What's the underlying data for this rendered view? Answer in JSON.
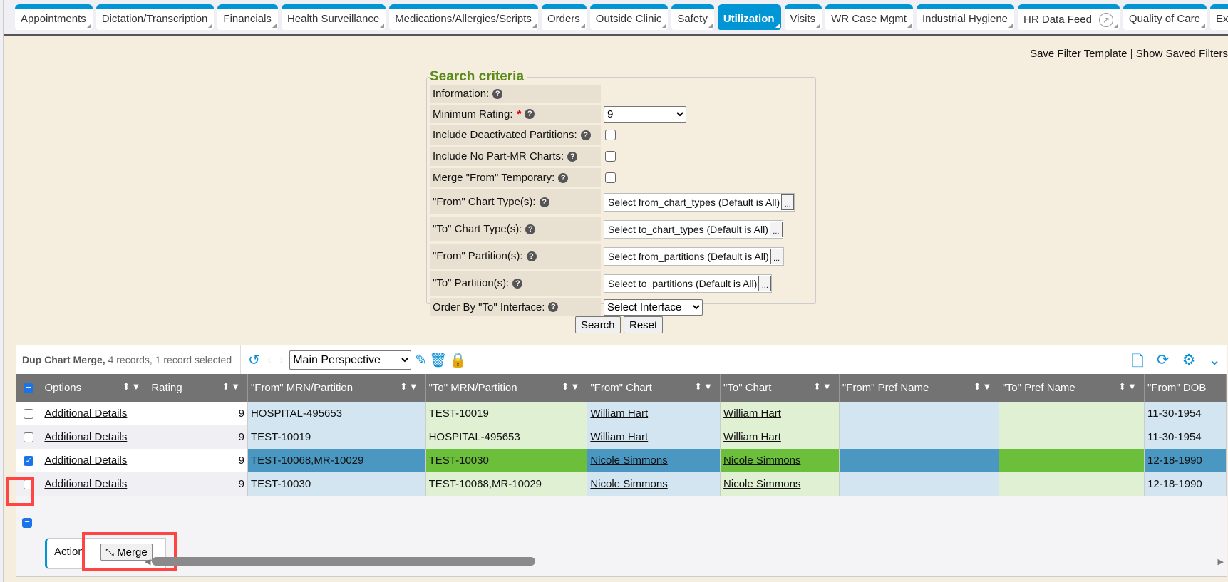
{
  "tabs": [
    {
      "label": "Appointments"
    },
    {
      "label": "Dictation/Transcription"
    },
    {
      "label": "Financials"
    },
    {
      "label": "Health Surveillance"
    },
    {
      "label": "Medications/Allergies/Scripts"
    },
    {
      "label": "Orders"
    },
    {
      "label": "Outside Clinic"
    },
    {
      "label": "Safety"
    },
    {
      "label": "Utilization",
      "active": true
    },
    {
      "label": "Visits"
    },
    {
      "label": "WR Case Mgmt"
    },
    {
      "label": "Industrial Hygiene"
    },
    {
      "label": "HR Data Feed"
    },
    {
      "label": "Quality of Care"
    },
    {
      "label": "Execu"
    }
  ],
  "links": {
    "save": "Save Filter Template",
    "sep": "|",
    "show": "Show Saved Filters"
  },
  "search": {
    "legend": "Search criteria",
    "information": "Information:",
    "min_rating": "Minimum Rating:",
    "min_rating_value": "9",
    "required": "*",
    "include_deactivated": "Include Deactivated Partitions:",
    "include_no_part": "Include No Part-MR Charts:",
    "merge_temp": "Merge \"From\" Temporary:",
    "from_chart_types": "\"From\" Chart Type(s):",
    "from_chart_types_value": "Select from_chart_types (Default is All)",
    "to_chart_types": "\"To\" Chart Type(s):",
    "to_chart_types_value": "Select to_chart_types (Default is All)",
    "from_partitions": "\"From\" Partition(s):",
    "from_partitions_value": "Select from_partitions (Default is All)",
    "to_partitions": "\"To\" Partition(s):",
    "to_partitions_value": "Select to_partitions (Default is All)",
    "order_by": "Order By \"To\" Interface:",
    "order_by_value": "Select Interface",
    "ellipsis": "...",
    "search_btn": "Search",
    "reset_btn": "Reset"
  },
  "grid": {
    "title": "Dup Chart Merge,",
    "summary": "4 records, 1 record selected",
    "perspective": "Main Perspective",
    "columns": [
      "Options",
      "Rating",
      "\"From\" MRN/Partition",
      "\"To\" MRN/Partition",
      "\"From\" Chart",
      "\"To\" Chart",
      "\"From\" Pref Name",
      "\"To\" Pref Name",
      "\"From\" DOB"
    ],
    "rows": [
      {
        "options": "Additional Details",
        "rating": "9",
        "from_mrn": "HOSPITAL-495653",
        "to_mrn": "TEST-10019",
        "from_chart": "William Hart",
        "to_chart": "William Hart",
        "from_pref": "",
        "to_pref": "",
        "from_dob": "11-30-1954",
        "selected": false
      },
      {
        "options": "Additional Details",
        "rating": "9",
        "from_mrn": "TEST-10019",
        "to_mrn": "HOSPITAL-495653",
        "from_chart": "William Hart",
        "to_chart": "William Hart",
        "from_pref": "",
        "to_pref": "",
        "from_dob": "11-30-1954",
        "selected": false
      },
      {
        "options": "Additional Details",
        "rating": "9",
        "from_mrn": "TEST-10068,MR-10029",
        "to_mrn": "TEST-10030",
        "from_chart": "Nicole Simmons",
        "to_chart": "Nicole Simmons",
        "from_pref": "",
        "to_pref": "",
        "from_dob": "12-18-1990",
        "selected": true
      },
      {
        "options": "Additional Details",
        "rating": "9",
        "from_mrn": "TEST-10030",
        "to_mrn": "TEST-10068,MR-10029",
        "from_chart": "Nicole Simmons",
        "to_chart": "Nicole Simmons",
        "from_pref": "",
        "to_pref": "",
        "from_dob": "12-18-1990",
        "selected": false
      }
    ],
    "action_label": "Action",
    "merge_label": "Merge"
  },
  "colors": {
    "accent": "#0096d6",
    "from_col": "#d2e5f1",
    "to_col": "#e0f0d3",
    "selected_from": "#4a97c2",
    "selected_to": "#6cbf3a",
    "highlight": "#ff4444"
  }
}
